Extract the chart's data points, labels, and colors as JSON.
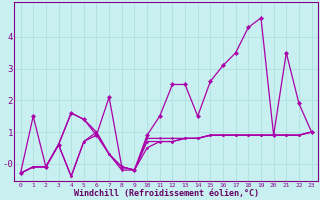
{
  "xlabel": "Windchill (Refroidissement éolien,°C)",
  "background_color": "#c8f0f0",
  "line_color": "#aa00aa",
  "grid_color": "#b0e0e0",
  "x_values": [
    0,
    1,
    2,
    3,
    4,
    5,
    6,
    7,
    8,
    9,
    10,
    11,
    12,
    13,
    14,
    15,
    16,
    17,
    18,
    19,
    20,
    21,
    22,
    23
  ],
  "series": [
    [
      -0.3,
      1.5,
      -0.1,
      0.6,
      1.6,
      1.4,
      0.9,
      2.1,
      -0.1,
      -0.2,
      0.9,
      1.5,
      2.5,
      2.5,
      1.5,
      2.6,
      3.1,
      3.5,
      4.3,
      4.6,
      0.9,
      3.5,
      1.9,
      1.0
    ],
    [
      -0.3,
      -0.1,
      -0.1,
      0.6,
      -0.4,
      0.7,
      0.9,
      0.3,
      -0.1,
      -0.2,
      0.7,
      0.7,
      0.7,
      0.8,
      0.8,
      0.9,
      0.9,
      0.9,
      0.9,
      0.9,
      0.9,
      0.9,
      0.9,
      1.0
    ],
    [
      -0.3,
      -0.1,
      -0.1,
      0.6,
      1.6,
      1.4,
      1.0,
      0.3,
      -0.1,
      -0.2,
      0.5,
      0.7,
      0.7,
      0.8,
      0.8,
      0.9,
      0.9,
      0.9,
      0.9,
      0.9,
      0.9,
      0.9,
      0.9,
      1.0
    ],
    [
      -0.3,
      -0.1,
      -0.1,
      0.6,
      -0.4,
      0.7,
      1.0,
      0.3,
      -0.2,
      -0.2,
      0.8,
      0.8,
      0.8,
      0.8,
      0.8,
      0.9,
      0.9,
      0.9,
      0.9,
      0.9,
      0.9,
      0.9,
      0.9,
      1.0
    ]
  ],
  "ylim": [
    -0.55,
    5.1
  ],
  "xlim": [
    -0.5,
    23.5
  ],
  "yticks": [
    0,
    1,
    2,
    3,
    4
  ],
  "ytick_labels": [
    "-0",
    "1",
    "2",
    "3",
    "4"
  ],
  "xticks": [
    0,
    1,
    2,
    3,
    4,
    5,
    6,
    7,
    8,
    9,
    10,
    11,
    12,
    13,
    14,
    15,
    16,
    17,
    18,
    19,
    20,
    21,
    22,
    23
  ],
  "tick_color": "#880088",
  "xlabel_fontsize": 6.0,
  "xlabel_color": "#660066",
  "ytick_fontsize": 6.5,
  "xtick_fontsize": 4.5,
  "linewidth": 0.9,
  "markersize": 2.2,
  "spine_color": "#880088"
}
